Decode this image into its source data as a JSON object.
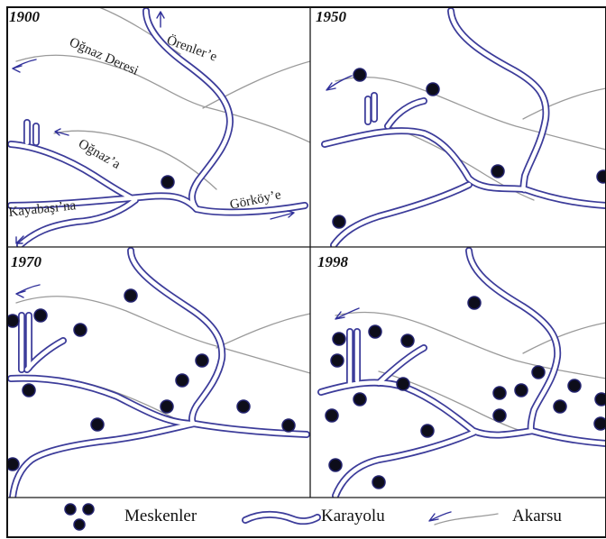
{
  "panels": [
    {
      "year": "1900"
    },
    {
      "year": "1950"
    },
    {
      "year": "1970"
    },
    {
      "year": "1998"
    }
  ],
  "labels": {
    "orenler": "Örenler’e",
    "ognaz_deresi": "Oğnaz Deresi",
    "ognaz": "Oğnaz’a",
    "kayabasi": "Kayabaşı’na",
    "gorkoy": "Görköy’e"
  },
  "legend": {
    "settlements": "Meskenler",
    "highway": "Karayolu",
    "stream": "Akarsu"
  },
  "colors": {
    "road_outline": "#3c3c9a",
    "stream": "#9a9a9a",
    "settlement": "#0d0d1a"
  }
}
